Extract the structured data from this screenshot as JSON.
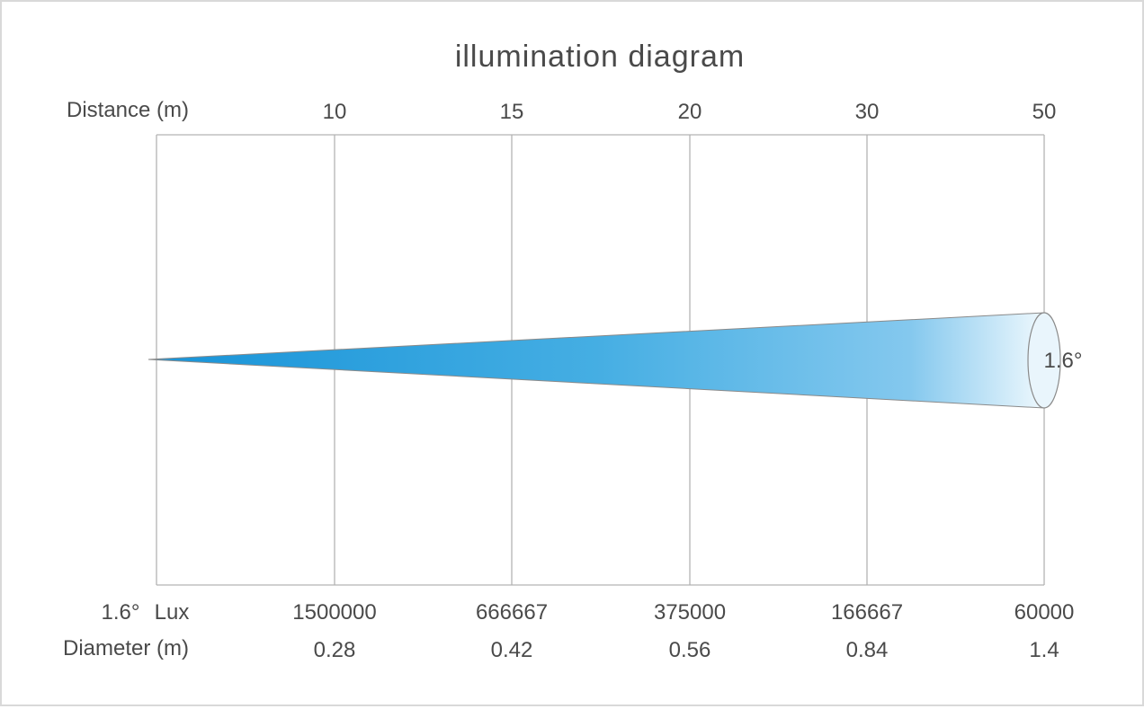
{
  "title": "illumination diagram",
  "distance_label": "Distance (m)",
  "distances": [
    "10",
    "15",
    "20",
    "30",
    "50"
  ],
  "beam_angle": "1.6°",
  "lux_angle": "1.6°",
  "lux_label": "Lux",
  "lux_values": [
    "1500000",
    "666667",
    "375000",
    "166667",
    "60000"
  ],
  "diameter_label": "Diameter (m)",
  "diameters": [
    "0.28",
    "0.42",
    "0.56",
    "0.84",
    "1.4"
  ],
  "colors": {
    "beam_start": "#1a96da",
    "beam_end": "#e8f5fc",
    "grid": "#b3b3b3",
    "text": "#4a4a4a"
  }
}
